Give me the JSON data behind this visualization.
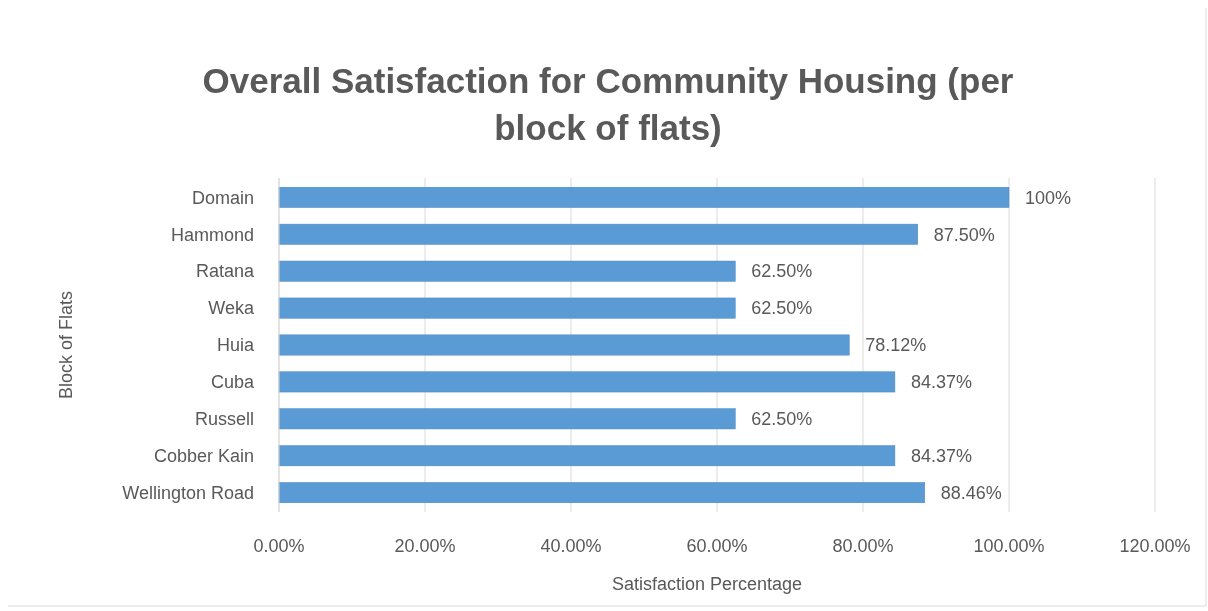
{
  "chart_data": {
    "type": "bar",
    "orientation": "horizontal",
    "title": "Overall Satisfaction for Community Housing (per block of flats)",
    "xlabel": "Satisfaction Percentage",
    "ylabel": "Block of Flats",
    "categories": [
      "Domain",
      "Hammond",
      "Ratana",
      "Weka",
      "Huia",
      "Cuba",
      "Russell",
      "Cobber Kain",
      "Wellington Road"
    ],
    "values": [
      100,
      87.5,
      62.5,
      62.5,
      78.12,
      84.37,
      62.5,
      84.37,
      88.46
    ],
    "value_labels": [
      "100%",
      "87.50%",
      "62.50%",
      "62.50%",
      "78.12%",
      "84.37%",
      "62.50%",
      "84.37%",
      "88.46%"
    ],
    "color": "#5b9bd5",
    "xlim": [
      0,
      120
    ],
    "xticks": [
      {
        "value": 0,
        "label": "0.00%"
      },
      {
        "value": 20,
        "label": "20.00%"
      },
      {
        "value": 40,
        "label": "40.00%"
      },
      {
        "value": 60,
        "label": "60.00%"
      },
      {
        "value": 80,
        "label": "80.00%"
      },
      {
        "value": 100,
        "label": "100.00%"
      },
      {
        "value": 120,
        "label": "120.00%"
      }
    ],
    "grid": "x"
  }
}
